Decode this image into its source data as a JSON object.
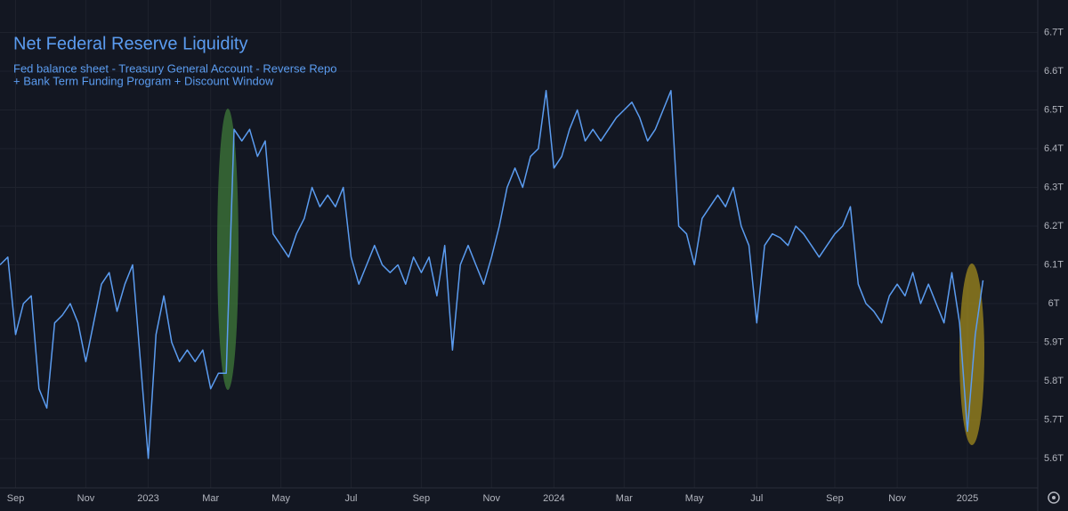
{
  "chart_data": {
    "type": "line",
    "title": "Net Federal Reserve Liquidity",
    "subtitle": [
      "Fed balance sheet - Treasury General Account - Reverse Repo",
      "+ Bank Term Funding Program + Discount Window"
    ],
    "categories": [
      null,
      null,
      "Sep",
      null,
      null,
      null,
      null,
      null,
      null,
      null,
      null,
      "Nov",
      null,
      null,
      null,
      null,
      null,
      null,
      null,
      "2023",
      null,
      null,
      null,
      null,
      null,
      null,
      null,
      "Mar",
      null,
      null,
      null,
      null,
      null,
      null,
      null,
      null,
      "May",
      null,
      null,
      null,
      null,
      null,
      null,
      null,
      null,
      "Jul",
      null,
      null,
      null,
      null,
      null,
      null,
      null,
      null,
      "Sep",
      null,
      null,
      null,
      null,
      null,
      null,
      null,
      null,
      "Nov",
      null,
      null,
      null,
      null,
      null,
      null,
      null,
      "2024",
      null,
      null,
      null,
      null,
      null,
      null,
      null,
      null,
      "Mar",
      null,
      null,
      null,
      null,
      null,
      null,
      null,
      null,
      "May",
      null,
      null,
      null,
      null,
      null,
      null,
      null,
      "Jul",
      null,
      null,
      null,
      null,
      null,
      null,
      null,
      null,
      null,
      "Sep",
      null,
      null,
      null,
      null,
      null,
      null,
      null,
      "Nov",
      null,
      null,
      null,
      null,
      null,
      null,
      null,
      null,
      "2025",
      null,
      null
    ],
    "series": [
      {
        "name": "Net Federal Reserve Liquidity",
        "color": "#5b9cf0",
        "values": [
          6.1,
          6.12,
          5.92,
          6.0,
          6.02,
          5.78,
          5.73,
          5.95,
          5.97,
          6.0,
          5.95,
          5.85,
          5.95,
          6.05,
          6.08,
          5.98,
          6.05,
          6.1,
          5.85,
          5.6,
          5.92,
          6.02,
          5.9,
          5.85,
          5.88,
          5.85,
          5.88,
          5.78,
          5.82,
          5.82,
          6.45,
          6.42,
          6.45,
          6.38,
          6.42,
          6.18,
          6.15,
          6.12,
          6.18,
          6.22,
          6.3,
          6.25,
          6.28,
          6.25,
          6.3,
          6.12,
          6.05,
          6.1,
          6.15,
          6.1,
          6.08,
          6.1,
          6.05,
          6.12,
          6.08,
          6.12,
          6.02,
          6.15,
          5.88,
          6.1,
          6.15,
          6.1,
          6.05,
          6.12,
          6.2,
          6.3,
          6.35,
          6.3,
          6.38,
          6.4,
          6.55,
          6.35,
          6.38,
          6.45,
          6.5,
          6.42,
          6.45,
          6.42,
          6.45,
          6.48,
          6.5,
          6.52,
          6.48,
          6.42,
          6.45,
          6.5,
          6.55,
          6.2,
          6.18,
          6.1,
          6.22,
          6.25,
          6.28,
          6.25,
          6.3,
          6.2,
          6.15,
          5.95,
          6.15,
          6.18,
          6.17,
          6.15,
          6.2,
          6.18,
          6.15,
          6.12,
          6.15,
          6.18,
          6.2,
          6.25,
          6.05,
          6.0,
          5.98,
          5.95,
          6.02,
          6.05,
          6.02,
          6.08,
          6.0,
          6.05,
          6.0,
          5.95,
          6.08,
          5.95,
          5.67,
          5.92,
          6.06
        ]
      }
    ],
    "ylim": [
      5.524,
      6.784
    ],
    "yticks": [
      {
        "value": 5.6,
        "label": "5.6T"
      },
      {
        "value": 5.7,
        "label": "5.7T"
      },
      {
        "value": 5.8,
        "label": "5.8T"
      },
      {
        "value": 5.9,
        "label": "5.9T"
      },
      {
        "value": 6.0,
        "label": "6T"
      },
      {
        "value": 6.1,
        "label": "6.1T"
      },
      {
        "value": 6.2,
        "label": "6.2T"
      },
      {
        "value": 6.3,
        "label": "6.3T"
      },
      {
        "value": 6.4,
        "label": "6.4T"
      },
      {
        "value": 6.5,
        "label": "6.5T"
      },
      {
        "value": 6.6,
        "label": "6.6T"
      },
      {
        "value": 6.7,
        "label": "6.7T"
      }
    ],
    "grid": true
  }
}
